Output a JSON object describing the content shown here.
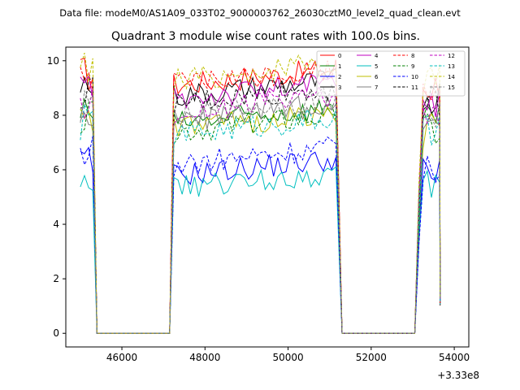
{
  "header": {
    "suptitle": "Data file: modeM0/AS1A09_033T02_9000003762_26030cztM0_level2_quad_clean.evt"
  },
  "chart_data": {
    "type": "line",
    "title": "Quadrant 3 module wise count rates with 100.0s bins.",
    "xlabel": "",
    "ylabel": "",
    "x_offset_label": "+3.33e8",
    "xlim": [
      44650,
      54350
    ],
    "ylim": [
      -0.5,
      10.5
    ],
    "x_ticks": [
      46000,
      48000,
      50000,
      52000,
      54000
    ],
    "y_ticks": [
      0,
      2,
      4,
      6,
      8,
      10
    ],
    "grid": false,
    "legend_position": "top-right",
    "legend_columns": 4,
    "bin_s": 100,
    "segments": [
      [
        45000,
        45300
      ],
      [
        47250,
        51200
      ],
      [
        53150,
        53650
      ]
    ],
    "series": [
      {
        "name": "0",
        "color": "#ff0000",
        "dash": "solid",
        "level_high": 9.1,
        "level_low": null
      },
      {
        "name": "1",
        "color": "#008000",
        "dash": "solid",
        "level_high": 7.7,
        "level_low": null
      },
      {
        "name": "2",
        "color": "#0000ff",
        "dash": "solid",
        "level_high": null,
        "level_low": 5.8
      },
      {
        "name": "3",
        "color": "#000000",
        "dash": "solid",
        "level_high": 8.7,
        "level_low": null
      },
      {
        "name": "4",
        "color": "#c000c0",
        "dash": "solid",
        "level_high": 8.6,
        "level_low": null
      },
      {
        "name": "5",
        "color": "#00bfbf",
        "dash": "solid",
        "level_high": null,
        "level_low": 5.3
      },
      {
        "name": "6",
        "color": "#bfbf00",
        "dash": "solid",
        "level_high": 7.5,
        "level_low": null
      },
      {
        "name": "7",
        "color": "#808080",
        "dash": "solid",
        "level_high": 7.8,
        "level_low": null
      },
      {
        "name": "8",
        "color": "#ff0000",
        "dash": "dashed",
        "level_high": 9.1,
        "level_low": null
      },
      {
        "name": "9",
        "color": "#008000",
        "dash": "dashed",
        "level_high": 7.4,
        "level_low": null
      },
      {
        "name": "10",
        "color": "#0000ff",
        "dash": "dashed",
        "level_high": null,
        "level_low": 6.2
      },
      {
        "name": "11",
        "color": "#000000",
        "dash": "dashed",
        "level_high": 8.4,
        "level_low": null
      },
      {
        "name": "12",
        "color": "#c000c0",
        "dash": "dashed",
        "level_high": 8.1,
        "level_low": null
      },
      {
        "name": "13",
        "color": "#00bfbf",
        "dash": "dashed",
        "level_high": 7.3,
        "level_low": null
      },
      {
        "name": "14",
        "color": "#bfbf00",
        "dash": "dashed",
        "level_high": 9.3,
        "level_low": null
      },
      {
        "name": "15",
        "color": "#808080",
        "dash": "dashed",
        "level_high": 8.0,
        "level_low": null
      }
    ]
  }
}
